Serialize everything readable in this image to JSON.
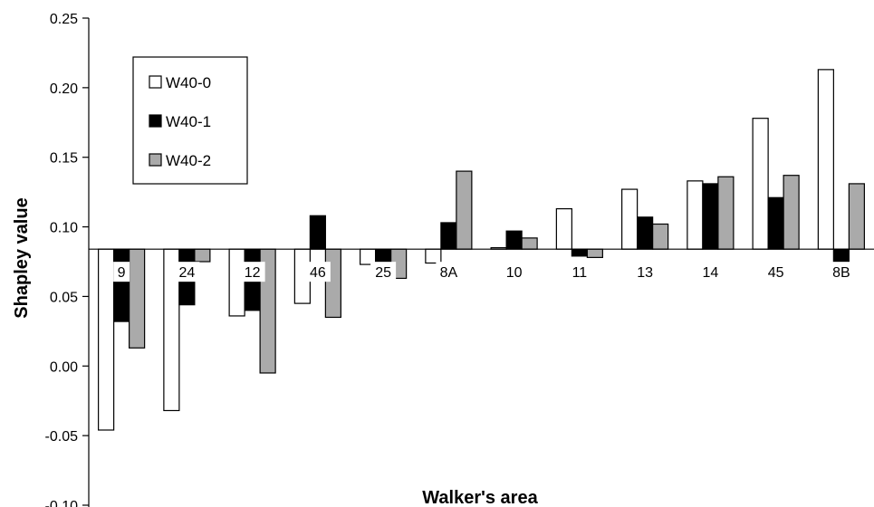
{
  "chart_data": {
    "type": "bar",
    "title": "",
    "xlabel": "Walker's area",
    "ylabel": "Shapley value",
    "ylim": [
      -0.1,
      0.25
    ],
    "yticks": [
      "0.25",
      "0.20",
      "0.15",
      "0.10",
      "0.05",
      "0.00",
      "-0.05",
      "-0.10"
    ],
    "ytick_values": [
      0.25,
      0.2,
      0.15,
      0.1,
      0.05,
      0.0,
      -0.05,
      -0.1
    ],
    "baseline": 0.084,
    "grid": false,
    "legend_position": "top-left",
    "categories": [
      "9",
      "24",
      "12",
      "46",
      "25",
      "8A",
      "10",
      "11",
      "13",
      "14",
      "45",
      "8B"
    ],
    "series": [
      {
        "name": "W40-0",
        "color": "#ffffff",
        "values": [
          -0.046,
          -0.032,
          0.036,
          0.045,
          0.073,
          0.074,
          0.085,
          0.113,
          0.127,
          0.133,
          0.178,
          0.213
        ]
      },
      {
        "name": "W40-1",
        "color": "#000000",
        "values": [
          0.032,
          0.044,
          0.04,
          0.108,
          0.072,
          0.103,
          0.097,
          0.079,
          0.107,
          0.131,
          0.121,
          0.075
        ]
      },
      {
        "name": "W40-2",
        "color": "#aaaaaa",
        "values": [
          0.013,
          0.075,
          -0.005,
          0.035,
          0.063,
          0.14,
          0.092,
          0.078,
          0.102,
          0.136,
          0.137,
          0.131
        ]
      }
    ]
  }
}
